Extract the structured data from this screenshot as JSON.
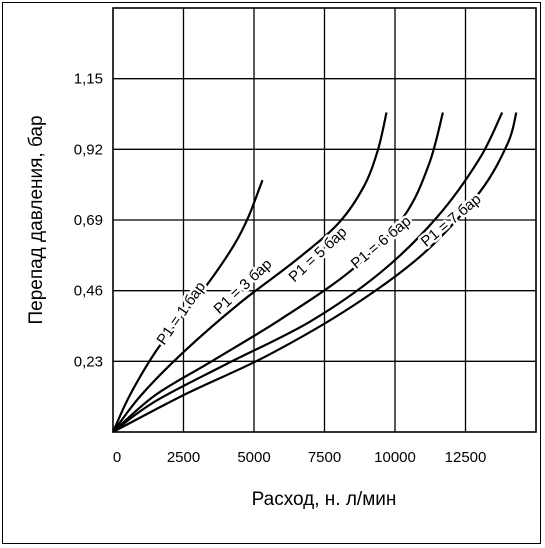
{
  "chart_data": {
    "type": "line",
    "xlabel": "Расход, н. л/мин",
    "ylabel": "Перепад давления, бар",
    "xlim": [
      0,
      15000
    ],
    "ylim": [
      0,
      1.38
    ],
    "x_ticks": [
      "0",
      "2500",
      "5000",
      "7500",
      "10000",
      "12500"
    ],
    "y_ticks": [
      "0,23",
      "0,46",
      "0,69",
      "0,92",
      "1,15"
    ],
    "grid": true,
    "series": [
      {
        "name": "P1 = 1 бар",
        "x": [
          0,
          600,
          1500,
          2500,
          3500,
          4300,
          4800,
          5300
        ],
        "y": [
          0,
          0.12,
          0.26,
          0.38,
          0.5,
          0.61,
          0.7,
          0.82
        ]
      },
      {
        "name": "P1 = 3 бар",
        "x": [
          0,
          1000,
          2500,
          4500,
          6500,
          8000,
          8900,
          9400,
          9700
        ],
        "y": [
          0,
          0.12,
          0.26,
          0.42,
          0.56,
          0.68,
          0.8,
          0.92,
          1.04
        ]
      },
      {
        "name": "P1 = 5 бар",
        "x": [
          0,
          1500,
          3500,
          6000,
          8500,
          10300,
          11200,
          11700
        ],
        "y": [
          0,
          0.12,
          0.23,
          0.37,
          0.53,
          0.7,
          0.87,
          1.04
        ]
      },
      {
        "name": "P1 = 6 бар",
        "x": [
          0,
          1500,
          4000,
          7000,
          9500,
          11500,
          13000,
          13800
        ],
        "y": [
          0,
          0.1,
          0.22,
          0.36,
          0.52,
          0.7,
          0.89,
          1.04
        ]
      },
      {
        "name": "P1 = 7 бар",
        "x": [
          0,
          2500,
          5500,
          8500,
          11000,
          13000,
          14000,
          14300
        ],
        "y": [
          0,
          0.12,
          0.25,
          0.41,
          0.58,
          0.78,
          0.94,
          1.04
        ]
      }
    ]
  }
}
